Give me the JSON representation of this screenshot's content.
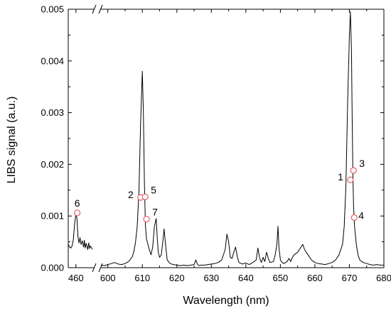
{
  "chart_data": {
    "type": "line",
    "xlabel": "Wavelength (nm)",
    "ylabel": "LIBS signal (a.u.)",
    "ylim": [
      0,
      0.005
    ],
    "y_ticks": [
      0.0,
      0.001,
      0.002,
      0.003,
      0.004,
      0.005
    ],
    "y_tick_labels": [
      "0.000",
      "0.001",
      "0.002",
      "0.003",
      "0.004",
      "0.005"
    ],
    "axis_break": {
      "lower_segment": [
        457,
        467
      ],
      "upper_segment": [
        598,
        680
      ]
    },
    "x_ticks": [
      460,
      600,
      610,
      620,
      630,
      640,
      650,
      660,
      670,
      680
    ],
    "x_tick_labels": [
      "460",
      "600",
      "610",
      "620",
      "630",
      "640",
      "650",
      "660",
      "670",
      "680"
    ],
    "grid": false,
    "series": [
      {
        "color": "#000000",
        "segments": [
          {
            "x": [
              457.0,
              457.5,
              458.0,
              458.5,
              459.0,
              459.5,
              460.0,
              460.4,
              460.8,
              461.2,
              461.6,
              462.0,
              462.5,
              463.0,
              463.3,
              463.6,
              464.0,
              464.3,
              464.6,
              465.0,
              465.3,
              465.6,
              466.0,
              466.5
            ],
            "y": [
              0.00045,
              0.0004,
              0.00038,
              0.00042,
              0.00055,
              0.00085,
              0.00105,
              0.00095,
              0.0006,
              0.00048,
              0.00058,
              0.00045,
              0.00052,
              0.0004,
              0.00053,
              0.00038,
              0.00047,
              0.00042,
              0.00035,
              0.00048,
              0.00037,
              0.00042,
              0.00039,
              0.00036
            ]
          },
          {
            "x": [
              598.0,
              599.0,
              600.0,
              601.0,
              602.0,
              603.0,
              604.0,
              605.0,
              606.0,
              607.0,
              607.5,
              608.0,
              608.5,
              609.0,
              609.5,
              610.0,
              610.3,
              610.6,
              610.9,
              611.2,
              611.5,
              612.0,
              612.5,
              613.0,
              613.5,
              614.0,
              614.3,
              614.6,
              615.0,
              615.5,
              616.0,
              616.3,
              616.7,
              617.2,
              618.0,
              619.0,
              620.0,
              621.0,
              622.0,
              623.0,
              624.0,
              625.0,
              625.5,
              626.0,
              626.5,
              627.0,
              628.0,
              629.0,
              630.0,
              631.0,
              632.0,
              633.0,
              634.0,
              634.5,
              635.0,
              635.5,
              636.0,
              636.5,
              637.0,
              637.5,
              638.0,
              639.0,
              640.0,
              641.0,
              642.0,
              643.0,
              643.5,
              644.0,
              644.5,
              645.0,
              645.5,
              646.0,
              646.5,
              647.0,
              648.0,
              648.5,
              649.0,
              649.3,
              649.6,
              650.0,
              650.5,
              651.0,
              652.0,
              652.5,
              653.0,
              653.5,
              654.0,
              655.0,
              656.0,
              656.5,
              657.0,
              658.0,
              659.0,
              660.0,
              661.0,
              662.0,
              663.0,
              664.0,
              665.0,
              666.0,
              667.0,
              668.0,
              668.5,
              669.0,
              669.5,
              670.0,
              670.3,
              670.6,
              670.8,
              671.0,
              671.2,
              671.5,
              672.0,
              672.5,
              673.0,
              674.0,
              675.0,
              676.0,
              677.0,
              678.0,
              679.0,
              680.0
            ],
            "y": [
              5e-05,
              4e-05,
              6e-05,
              8e-05,
              0.0001,
              7e-05,
              6e-05,
              8e-05,
              0.00012,
              0.0002,
              0.0003,
              0.00048,
              0.0008,
              0.00145,
              0.0028,
              0.0038,
              0.003,
              0.0016,
              0.0008,
              0.00055,
              0.00048,
              0.00035,
              0.00025,
              0.0004,
              0.0008,
              0.00095,
              0.0006,
              0.0003,
              0.0002,
              0.00025,
              0.00055,
              0.00075,
              0.00045,
              0.00015,
              8e-05,
              6e-05,
              5e-05,
              4e-05,
              5e-05,
              4e-05,
              5e-05,
              6e-05,
              0.00015,
              6e-05,
              4e-05,
              5e-05,
              5e-05,
              6e-05,
              7e-05,
              8e-05,
              0.0001,
              0.00015,
              0.00035,
              0.00065,
              0.0005,
              0.0002,
              0.00018,
              0.0003,
              0.0004,
              0.00022,
              0.0001,
              7e-05,
              9e-05,
              6e-05,
              0.0001,
              0.00015,
              0.00038,
              0.00018,
              0.0001,
              0.0002,
              0.00012,
              0.0003,
              0.00018,
              0.0001,
              0.00012,
              0.00025,
              0.00045,
              0.0008,
              0.0004,
              0.00015,
              0.0001,
              8e-05,
              0.00012,
              0.00018,
              0.00012,
              0.0002,
              0.00025,
              0.0003,
              0.0004,
              0.00045,
              0.00035,
              0.00025,
              0.00015,
              0.0001,
              8e-05,
              7e-05,
              6e-05,
              8e-05,
              0.0001,
              0.00015,
              0.00025,
              0.00045,
              0.0008,
              0.0016,
              0.0032,
              0.0045,
              0.00495,
              0.0042,
              0.003,
              0.0019,
              0.0012,
              0.0008,
              0.00045,
              0.00025,
              0.00015,
              0.0001,
              8e-05,
              6e-05,
              5e-05,
              6e-05,
              5e-05,
              5e-05
            ]
          }
        ]
      }
    ],
    "annotations": [
      {
        "label": "1",
        "x": 670.3,
        "y": 0.0017,
        "label_side": "left"
      },
      {
        "label": "2",
        "x": 609.5,
        "y": 0.00136,
        "label_side": "left"
      },
      {
        "label": "3",
        "x": 671.2,
        "y": 0.00188,
        "label_side": "right"
      },
      {
        "label": "4",
        "x": 671.4,
        "y": 0.00097,
        "label_side": "right-below"
      },
      {
        "label": "5",
        "x": 610.8,
        "y": 0.00137,
        "label_side": "right"
      },
      {
        "label": "6",
        "x": 460.5,
        "y": 0.00106,
        "label_side": "above"
      },
      {
        "label": "7",
        "x": 611.2,
        "y": 0.00094,
        "label_side": "right"
      }
    ],
    "marker_color": "#e06060"
  }
}
